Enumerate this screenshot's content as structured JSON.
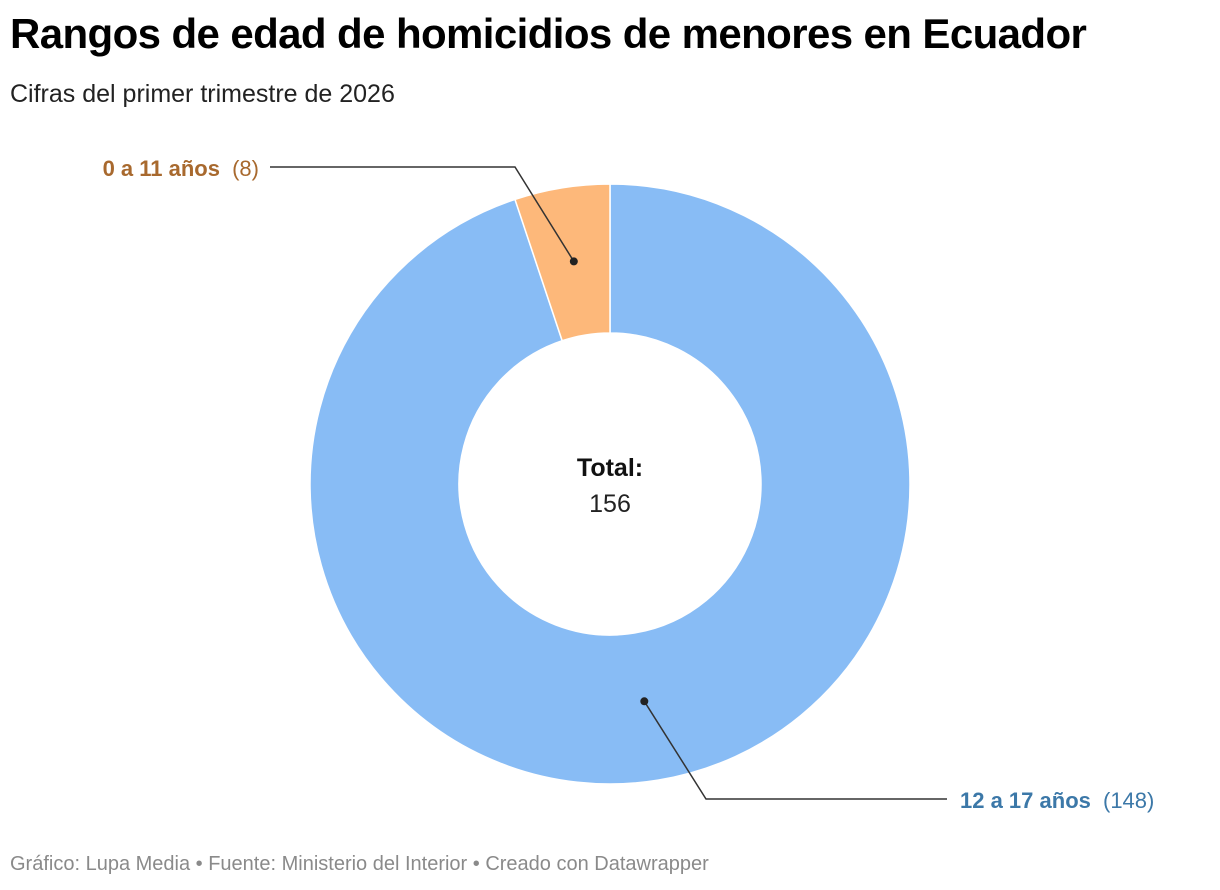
{
  "header": {
    "title": "Rangos de edad de homicidios de menores en Ecuador",
    "subtitle": "Cifras del primer trimestre de 2026"
  },
  "chart_data": {
    "type": "pie",
    "donut": true,
    "categories": [
      "0 a 11 años",
      "12 a 17 años"
    ],
    "values": [
      8,
      148
    ],
    "value_labels": [
      "(8)",
      "(148)"
    ],
    "colors": [
      "#FDB87A",
      "#88BCF5"
    ],
    "label_colors": [
      "#A8692E",
      "#3C78A8"
    ],
    "center_label": "Total:",
    "center_value": "156",
    "legend": "none"
  },
  "footer": {
    "credit": "Gráfico: Lupa Media • Fuente: Ministerio del Interior • Creado con Datawrapper"
  }
}
